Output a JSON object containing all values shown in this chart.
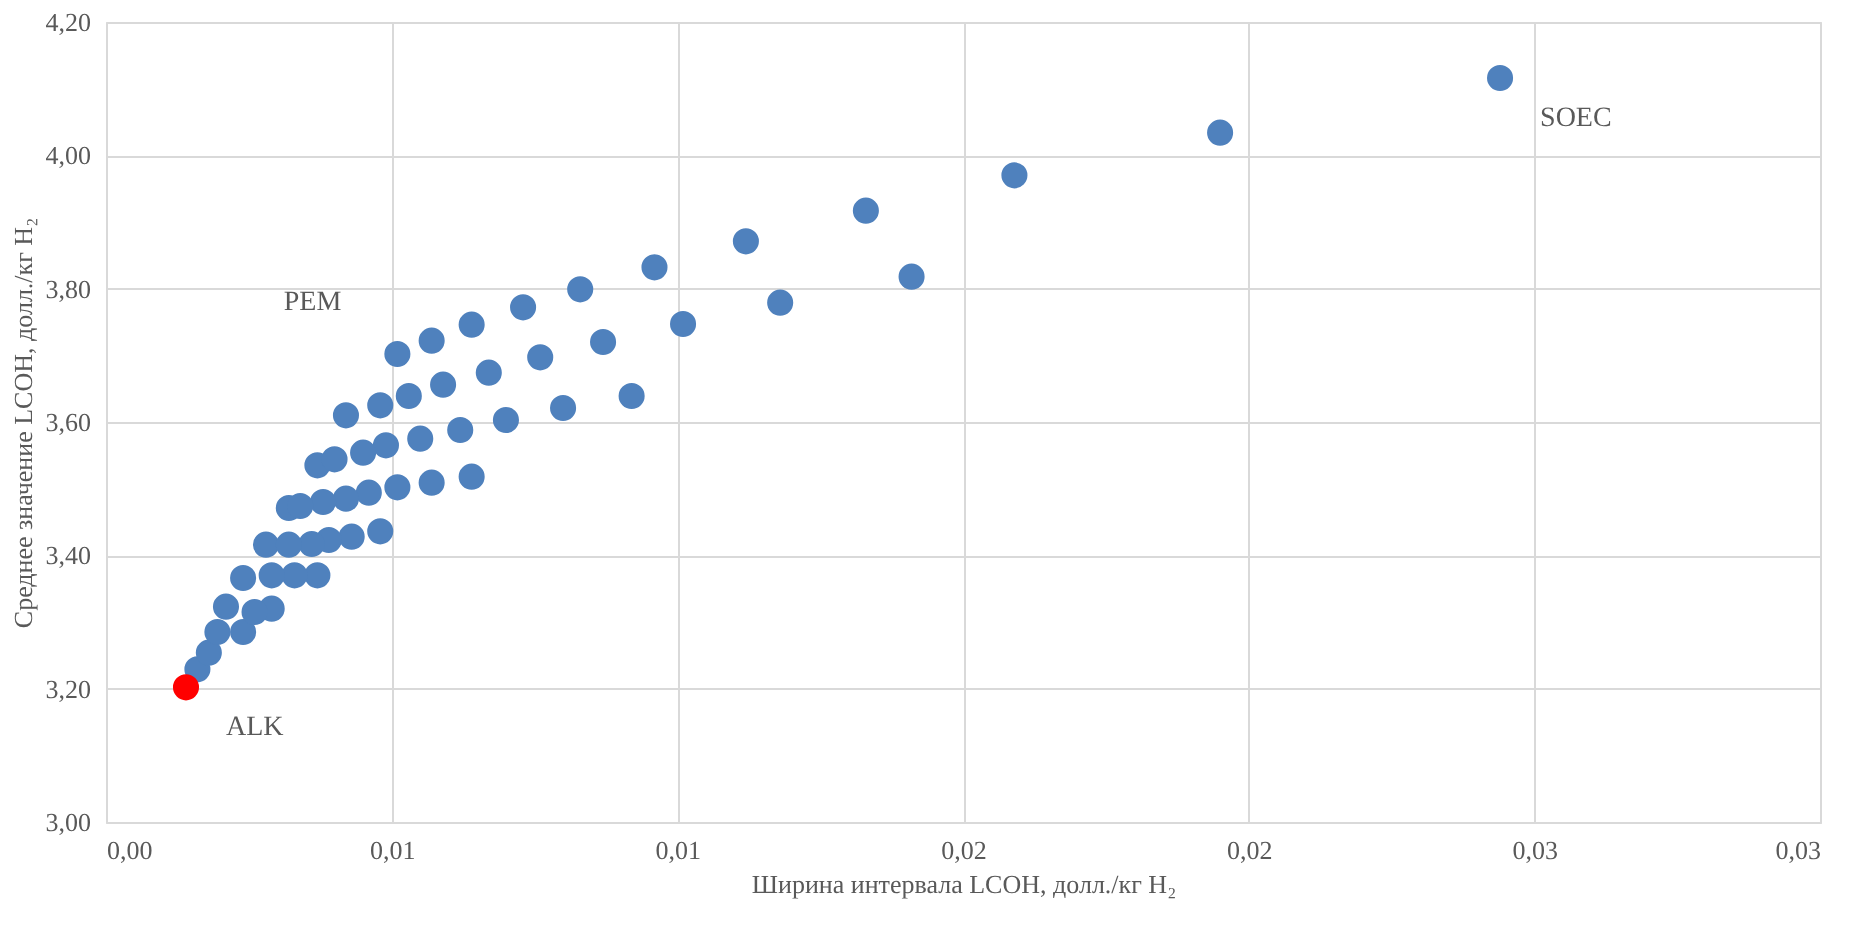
{
  "chart_data": {
    "type": "scatter",
    "xlabel": "Ширина интервала LCOH, долл./кг H₂",
    "ylabel": "Среднее значение LCOH, долл./кг H₂",
    "xlim": [
      0,
      0.03
    ],
    "ylim": [
      3.0,
      4.2
    ],
    "xticks": [
      {
        "value": 0,
        "label": "0,00"
      },
      {
        "value": 0.005,
        "label": "0,01"
      },
      {
        "value": 0.01,
        "label": "0,01"
      },
      {
        "value": 0.015,
        "label": "0,02"
      },
      {
        "value": 0.02,
        "label": "0,02"
      },
      {
        "value": 0.025,
        "label": "0,03"
      },
      {
        "value": 0.03,
        "label": "0,03"
      }
    ],
    "yticks": [
      {
        "value": 3.0,
        "label": "3,00"
      },
      {
        "value": 3.2,
        "label": "3,20"
      },
      {
        "value": 3.4,
        "label": "3,40"
      },
      {
        "value": 3.6,
        "label": "3,60"
      },
      {
        "value": 3.8,
        "label": "3,80"
      },
      {
        "value": 4.0,
        "label": "4,00"
      },
      {
        "value": 4.2,
        "label": "4,20"
      }
    ],
    "grid": true,
    "marker": "circle",
    "series": [
      {
        "color": "#4f81bd",
        "x": [
          0.0016,
          0.0018,
          0.00195,
          0.0021,
          0.0024,
          0.0024,
          0.0029,
          0.0028,
          0.0032,
          0.0037,
          0.0042,
          0.0048,
          0.0051,
          0.0057,
          0.0064,
          0.0073,
          0.0083,
          0.0053,
          0.0059,
          0.0067,
          0.0076,
          0.0087,
          0.0092,
          0.008,
          0.007,
          0.0062,
          0.0055,
          0.0049,
          0.0045,
          0.004,
          0.0051,
          0.0057,
          0.0064,
          0.0046,
          0.0042,
          0.0038,
          0.0034,
          0.0048,
          0.0043,
          0.0039,
          0.0036,
          0.0032,
          0.0037,
          0.0033,
          0.0029,
          0.0026,
          0.0096,
          0.0101,
          0.0112,
          0.0118,
          0.0133,
          0.0141,
          0.0159,
          0.0195,
          0.0244
        ],
        "values": [
          3.229,
          3.254,
          3.285,
          3.323,
          3.366,
          3.285,
          3.32,
          3.416,
          3.471,
          3.535,
          3.61,
          3.625,
          3.702,
          3.722,
          3.746,
          3.772,
          3.799,
          3.639,
          3.656,
          3.674,
          3.697,
          3.72,
          3.639,
          3.621,
          3.603,
          3.588,
          3.575,
          3.565,
          3.554,
          3.544,
          3.502,
          3.509,
          3.518,
          3.494,
          3.485,
          3.48,
          3.474,
          3.436,
          3.428,
          3.423,
          3.417,
          3.416,
          3.37,
          3.37,
          3.37,
          3.315,
          3.832,
          3.747,
          3.871,
          3.779,
          3.917,
          3.818,
          3.97,
          4.034,
          4.116
        ]
      },
      {
        "color": "#ff0000",
        "x": [
          0.0014
        ],
        "values": [
          3.202
        ]
      }
    ],
    "annotations": [
      {
        "text": "ALK",
        "x": 0.0014,
        "y": 3.202
      },
      {
        "text": "PEM",
        "x": 0.0051,
        "y": 3.702
      },
      {
        "text": "SOEC",
        "x": 0.0244,
        "y": 4.116
      }
    ]
  }
}
